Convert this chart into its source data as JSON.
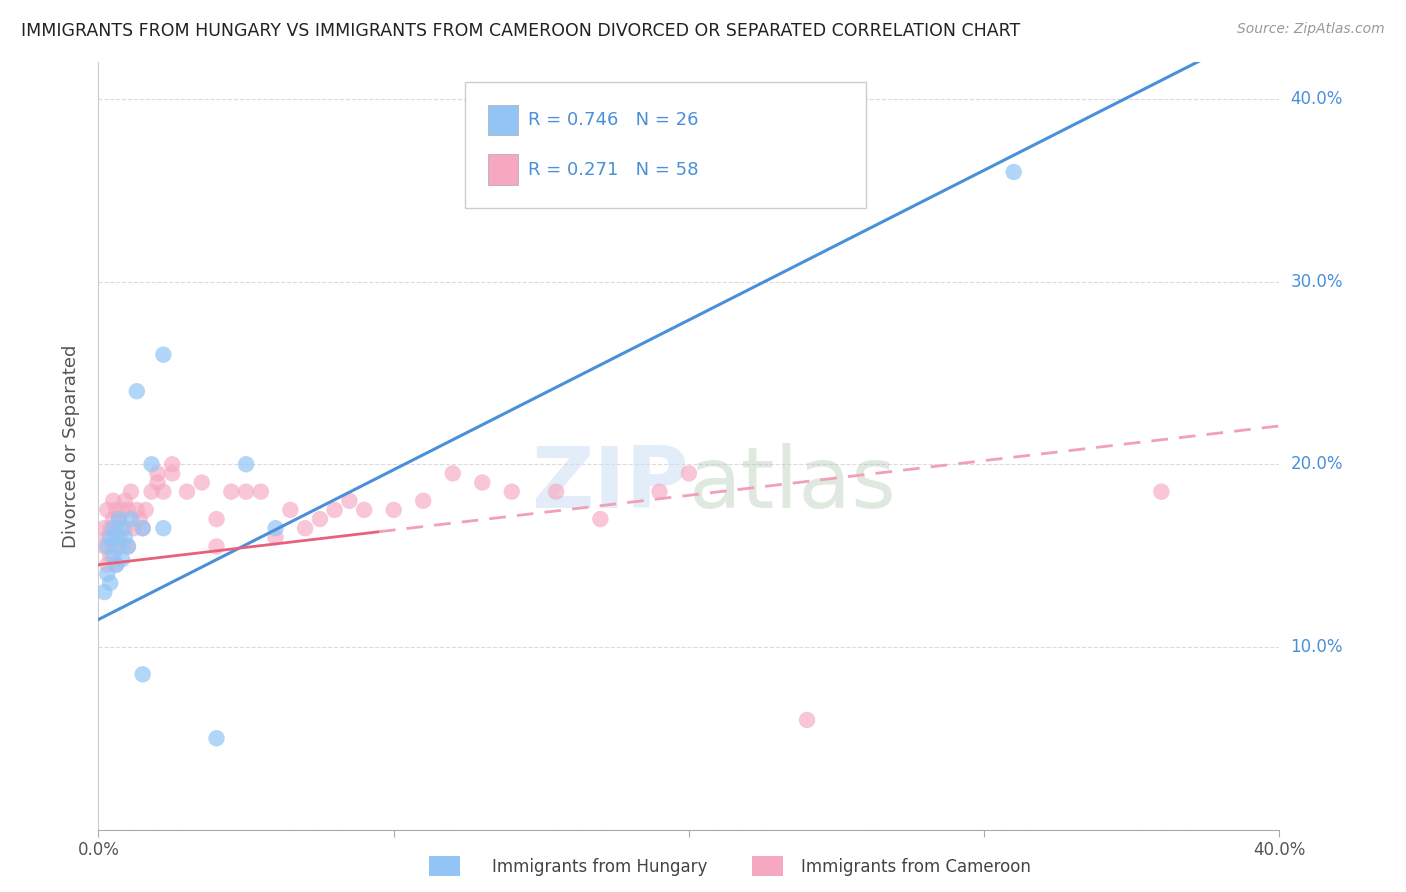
{
  "title": "IMMIGRANTS FROM HUNGARY VS IMMIGRANTS FROM CAMEROON DIVORCED OR SEPARATED CORRELATION CHART",
  "source": "Source: ZipAtlas.com",
  "ylabel": "Divorced or Separated",
  "legend_hungary": "Immigrants from Hungary",
  "legend_cameroon": "Immigrants from Cameroon",
  "R_hungary": 0.746,
  "N_hungary": 26,
  "R_cameroon": 0.271,
  "N_cameroon": 58,
  "xlim": [
    0.0,
    0.4
  ],
  "ylim": [
    0.0,
    0.42
  ],
  "hungary_color": "#92c5f5",
  "cameroon_color": "#f5a8c0",
  "hungary_line_color": "#4a90d9",
  "cameroon_line_color_solid": "#e8607a",
  "cameroon_line_color_dashed": "#f0a0b8",
  "background_color": "#ffffff",
  "grid_color": "#d8d8d8",
  "right_axis_color": "#4a90d9",
  "title_color": "#222222",
  "source_color": "#999999",
  "label_color": "#555555"
}
